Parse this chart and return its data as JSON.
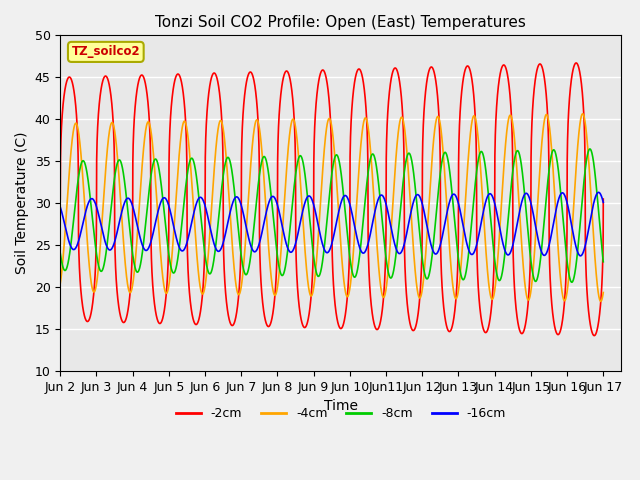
{
  "title": "Tonzi Soil CO2 Profile: Open (East) Temperatures",
  "xlabel": "Time",
  "ylabel": "Soil Temperature (C)",
  "ylim": [
    10,
    50
  ],
  "xlim_start": 0,
  "xlim_end": 15.5,
  "annotation": "TZ_soilco2",
  "series": [
    {
      "label": "-2cm",
      "color": "#FF0000",
      "base_amp": 14.5,
      "base_mean": 30.5,
      "phase_shift": 0.0,
      "amp_growth": 1.8,
      "mean_growth": 0.0,
      "sharpness": 3.0
    },
    {
      "label": "-4cm",
      "color": "#FFA500",
      "base_amp": 10.0,
      "base_mean": 29.5,
      "phase_shift": 0.18,
      "amp_growth": 1.2,
      "mean_growth": 0.0,
      "sharpness": 1.0
    },
    {
      "label": "-8cm",
      "color": "#00CC00",
      "base_amp": 6.5,
      "base_mean": 28.5,
      "phase_shift": 0.38,
      "amp_growth": 1.5,
      "mean_growth": 0.0,
      "sharpness": 1.0
    },
    {
      "label": "-16cm",
      "color": "#0000FF",
      "base_amp": 3.0,
      "base_mean": 27.5,
      "phase_shift": 0.62,
      "amp_growth": 0.8,
      "mean_growth": 0.0,
      "sharpness": 1.0
    }
  ],
  "background_color": "#E8E8E8",
  "fig_background": "#F0F0F0",
  "grid_color": "#FFFFFF",
  "tick_labels": [
    "Jun 2",
    "Jun 3",
    "Jun 4",
    "Jun 5",
    "Jun 6",
    "Jun 7",
    "Jun 8",
    "Jun 9",
    "Jun 10",
    "Jun11",
    "Jun 12",
    "Jun 13",
    "Jun 14",
    "Jun 15",
    "Jun 16",
    "Jun 17"
  ],
  "tick_positions": [
    0,
    1,
    2,
    3,
    4,
    5,
    6,
    7,
    8,
    9,
    10,
    11,
    12,
    13,
    14,
    15
  ],
  "yticks": [
    10,
    15,
    20,
    25,
    30,
    35,
    40,
    45,
    50
  ]
}
